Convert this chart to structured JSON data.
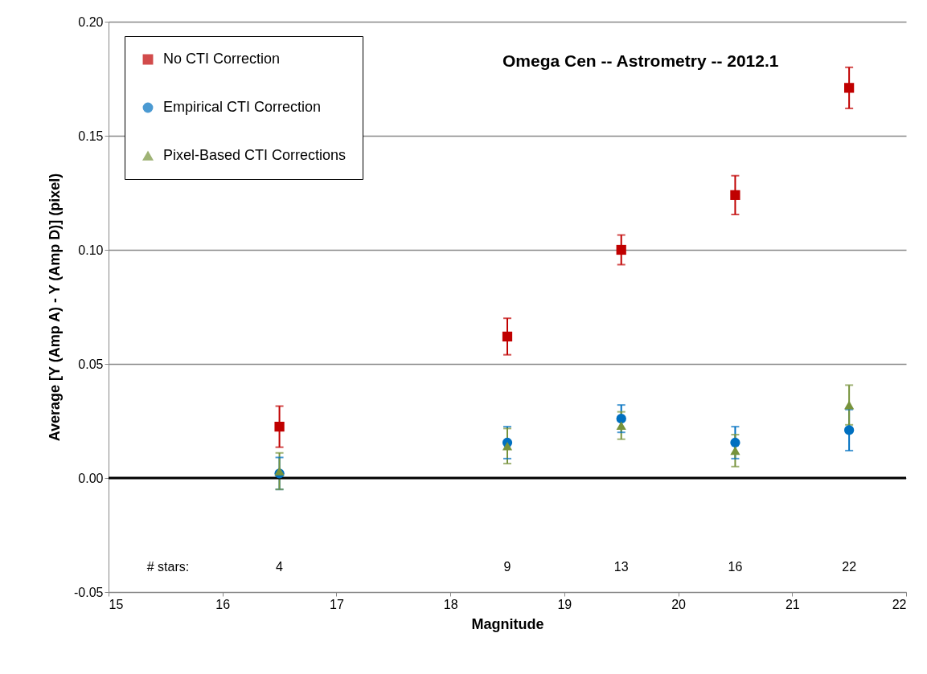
{
  "chart_data": {
    "type": "scatter",
    "title": "Omega Cen -- Astrometry -- 2012.1",
    "xlabel": "Magnitude",
    "ylabel": "Average [Y (Amp A) - Y (Amp D)]  (pixel)",
    "x": [
      16.5,
      18.5,
      19.5,
      20.5,
      21.5
    ],
    "series": [
      {
        "name": "No CTI Correction",
        "color": "#c00000",
        "marker": "square",
        "values": [
          0.0225,
          0.062,
          0.1,
          0.124,
          0.171
        ],
        "errors": [
          0.009,
          0.008,
          0.0065,
          0.0085,
          0.009
        ]
      },
      {
        "name": "Empirical CTI Correction",
        "color": "#0070c0",
        "marker": "circle",
        "values": [
          0.002,
          0.0155,
          0.026,
          0.0155,
          0.021
        ],
        "errors": [
          0.007,
          0.007,
          0.006,
          0.007,
          0.009
        ]
      },
      {
        "name": "Pixel-Based CTI Corrections",
        "color": "#77933c",
        "marker": "triangle",
        "values": [
          0.003,
          0.014,
          0.023,
          0.012,
          0.032
        ],
        "errors": [
          0.008,
          0.0077,
          0.006,
          0.007,
          0.0087
        ]
      }
    ],
    "xlim": [
      15,
      22
    ],
    "xticks": [
      15,
      16,
      17,
      18,
      19,
      20,
      21,
      22
    ],
    "ylim": [
      -0.05,
      0.2
    ],
    "yticks": [
      {
        "value": -0.05,
        "label": "-0.05"
      },
      {
        "value": 0,
        "label": "0.00"
      },
      {
        "value": 0.05,
        "label": "0.05"
      },
      {
        "value": 0.1,
        "label": "0.10"
      },
      {
        "value": 0.15,
        "label": "0.15"
      },
      {
        "value": 0.2,
        "label": "0.20"
      }
    ],
    "grid": "y",
    "legend": "top left",
    "ref_lines": [
      {
        "axis": "y",
        "value": 0,
        "color": "#000000"
      }
    ],
    "annotations": [
      "# stars:",
      "4",
      "9",
      "13",
      "16",
      "22"
    ]
  }
}
